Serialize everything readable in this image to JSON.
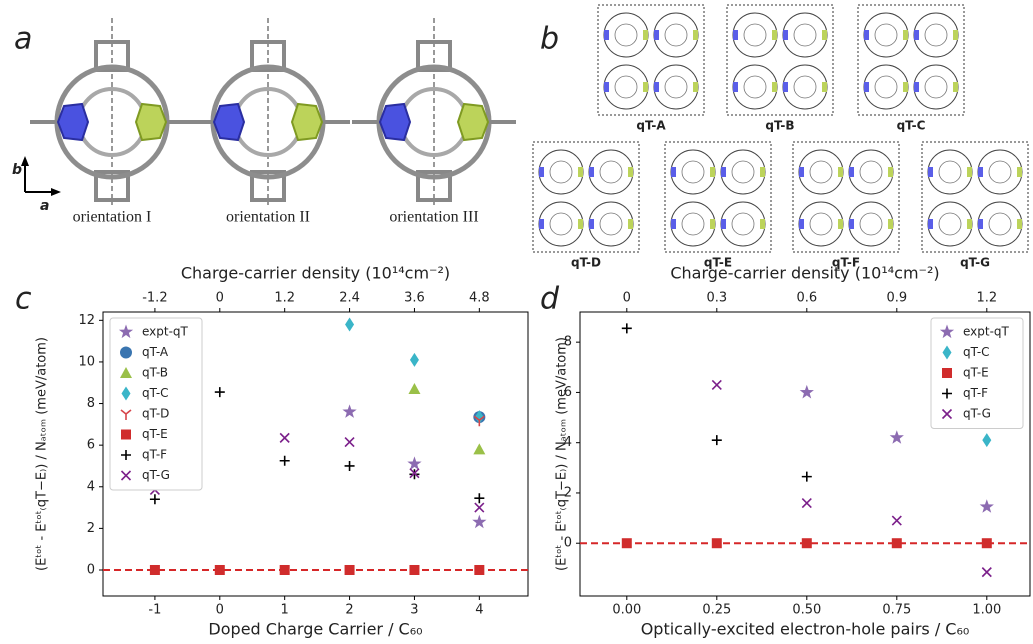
{
  "panel_a": {
    "letter": "a",
    "axis_labels": [
      "b",
      "a"
    ],
    "orientations": [
      "orientation I",
      "orientation II",
      "orientation III"
    ]
  },
  "panel_b": {
    "letter": "b",
    "structures": [
      "qT-A",
      "qT-B",
      "qT-C",
      "qT-D",
      "qT-E",
      "qT-F",
      "qT-G"
    ]
  },
  "chart_data": [
    {
      "type": "scatter",
      "panel": "c",
      "x_label": "Doped Charge Carrier / C₆₀",
      "y_label": "(Eᵗᵒᵗ - Eᵗᵒᵗ₍qT−E₎) / Nₐₜₒₘ  (meV/atom)",
      "x2_label": "Charge-carrier density  (10¹⁴cm⁻²)",
      "xlim": [
        -1.8,
        4.75
      ],
      "xticks": [
        -1,
        0,
        1,
        2,
        3,
        4
      ],
      "x2lim": [
        -2.16,
        5.7
      ],
      "x2ticks": [
        -1.2,
        0,
        1.2,
        2.4,
        3.6,
        4.8
      ],
      "ylim": [
        -1.25,
        12.4
      ],
      "yticks": [
        0,
        2,
        4,
        6,
        8,
        10,
        12
      ],
      "hline": 0,
      "hline_color": "#d62728",
      "legend": "upper left",
      "series": [
        {
          "name": "expt-qT",
          "color": "#8c6bb1",
          "marker": "star",
          "x": [
            2,
            3,
            4
          ],
          "values": [
            7.6,
            5.1,
            2.3
          ]
        },
        {
          "name": "qT-A",
          "color": "#3a75b0",
          "marker": "circle",
          "x": [
            4
          ],
          "values": [
            7.35
          ]
        },
        {
          "name": "qT-B",
          "color": "#9ac048",
          "marker": "triangle",
          "x": [
            3,
            4
          ],
          "values": [
            8.7,
            5.8
          ]
        },
        {
          "name": "qT-C",
          "color": "#3ab5c8",
          "marker": "diamond",
          "x": [
            2,
            3,
            4
          ],
          "values": [
            11.8,
            10.1,
            7.35
          ]
        },
        {
          "name": "qT-D",
          "color": "#d6454a",
          "marker": "tri",
          "x": [
            4
          ],
          "values": [
            7.2
          ]
        },
        {
          "name": "qT-E",
          "color": "#d02c2c",
          "marker": "square",
          "x": [
            -1,
            0,
            1,
            2,
            3,
            4
          ],
          "values": [
            0,
            0,
            0,
            0,
            0,
            0
          ]
        },
        {
          "name": "qT-F",
          "color": "#000000",
          "marker": "plus",
          "x": [
            -1,
            0,
            1,
            2,
            3,
            4
          ],
          "values": [
            3.4,
            8.55,
            5.25,
            5.0,
            4.6,
            3.45
          ]
        },
        {
          "name": "qT-G",
          "color": "#7b1f8a",
          "marker": "x",
          "x": [
            -1,
            1,
            2,
            3,
            4
          ],
          "values": [
            3.85,
            6.35,
            6.15,
            4.65,
            3.0
          ]
        }
      ]
    },
    {
      "type": "scatter",
      "panel": "d",
      "x_label": "Optically-excited electron-hole pairs / C₆₀",
      "y_label": "(Eᵗᵒᵗ - Eᵗᵒᵗ₍qT−E₎) / Nₐₜₒₘ  (meV/atom)",
      "x2_label": "Charge-carrier density  (10¹⁴cm⁻²)",
      "xlim": [
        -0.13,
        1.12
      ],
      "xticks": [
        {
          "value": 0,
          "label": "0.00"
        },
        {
          "value": 0.25,
          "label": "0.25"
        },
        {
          "value": 0.5,
          "label": "0.50"
        },
        {
          "value": 0.75,
          "label": "0.75"
        },
        {
          "value": 1,
          "label": "1.00"
        }
      ],
      "x2lim": [
        -0.156,
        1.344
      ],
      "x2ticks": [
        0,
        0.3,
        0.6,
        0.9,
        1.2
      ],
      "ylim": [
        -2.1,
        9.2
      ],
      "yticks": [
        0,
        2,
        4,
        6,
        8
      ],
      "hline": 0,
      "hline_color": "#d62728",
      "legend": "upper right",
      "series": [
        {
          "name": "expt-qT",
          "color": "#8c6bb1",
          "marker": "star",
          "x": [
            0.5,
            0.75,
            1.0
          ],
          "values": [
            6.0,
            4.2,
            1.45
          ]
        },
        {
          "name": "qT-C",
          "color": "#3ab5c8",
          "marker": "diamond",
          "x": [
            1.0
          ],
          "values": [
            4.1
          ]
        },
        {
          "name": "qT-E",
          "color": "#d02c2c",
          "marker": "square",
          "x": [
            0,
            0.25,
            0.5,
            0.75,
            1.0
          ],
          "values": [
            0,
            0,
            0,
            0,
            0
          ]
        },
        {
          "name": "qT-F",
          "color": "#000000",
          "marker": "plus",
          "x": [
            0,
            0.25,
            0.5
          ],
          "values": [
            8.55,
            4.1,
            2.65
          ]
        },
        {
          "name": "qT-G",
          "color": "#7b1f8a",
          "marker": "x",
          "x": [
            0.25,
            0.5,
            0.75,
            1.0
          ],
          "values": [
            6.3,
            1.6,
            0.9,
            -1.15
          ]
        }
      ]
    }
  ]
}
